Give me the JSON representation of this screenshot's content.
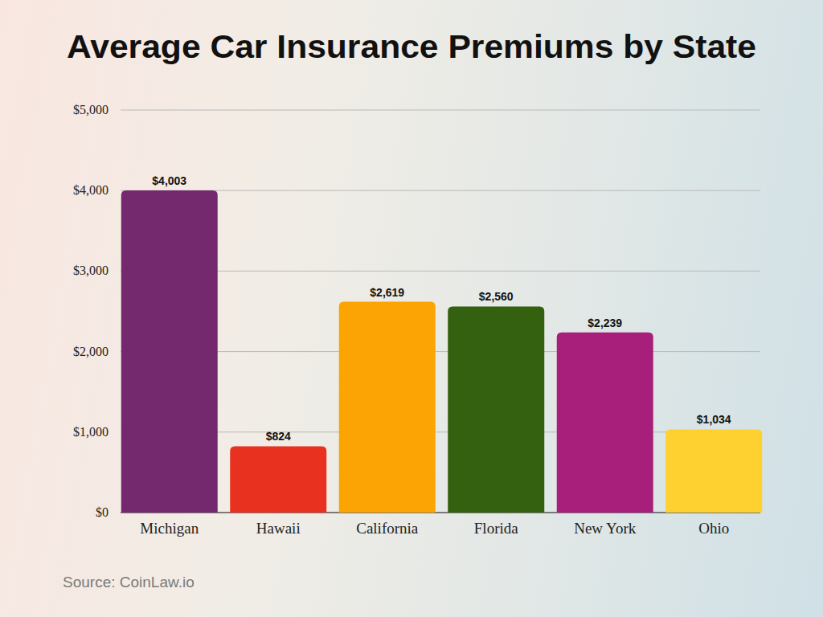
{
  "chart_data": {
    "type": "bar",
    "title": "Average Car Insurance Premiums by State",
    "categories": [
      "Michigan",
      "Hawaii",
      "California",
      "Florida",
      "New York",
      "Ohio"
    ],
    "values": [
      4003,
      824,
      2619,
      2560,
      2239,
      1034
    ],
    "value_labels": [
      "$4,003",
      "$824",
      "$2,619",
      "$2,560",
      "$2,239",
      "$1,034"
    ],
    "colors": [
      "#74296e",
      "#e8321f",
      "#fba404",
      "#33610f",
      "#a81e7b",
      "#fed130"
    ],
    "ylim": [
      0,
      5000
    ],
    "yticks": [
      {
        "value": 0,
        "label": "$0"
      },
      {
        "value": 1000,
        "label": "$1,000"
      },
      {
        "value": 2000,
        "label": "$2,000"
      },
      {
        "value": 3000,
        "label": "$3,000"
      },
      {
        "value": 4000,
        "label": "$4,000"
      },
      {
        "value": 5000,
        "label": "$5,000"
      }
    ],
    "grid": true,
    "data_labels": true,
    "annotations": [
      "Source: CoinLaw.io"
    ]
  }
}
